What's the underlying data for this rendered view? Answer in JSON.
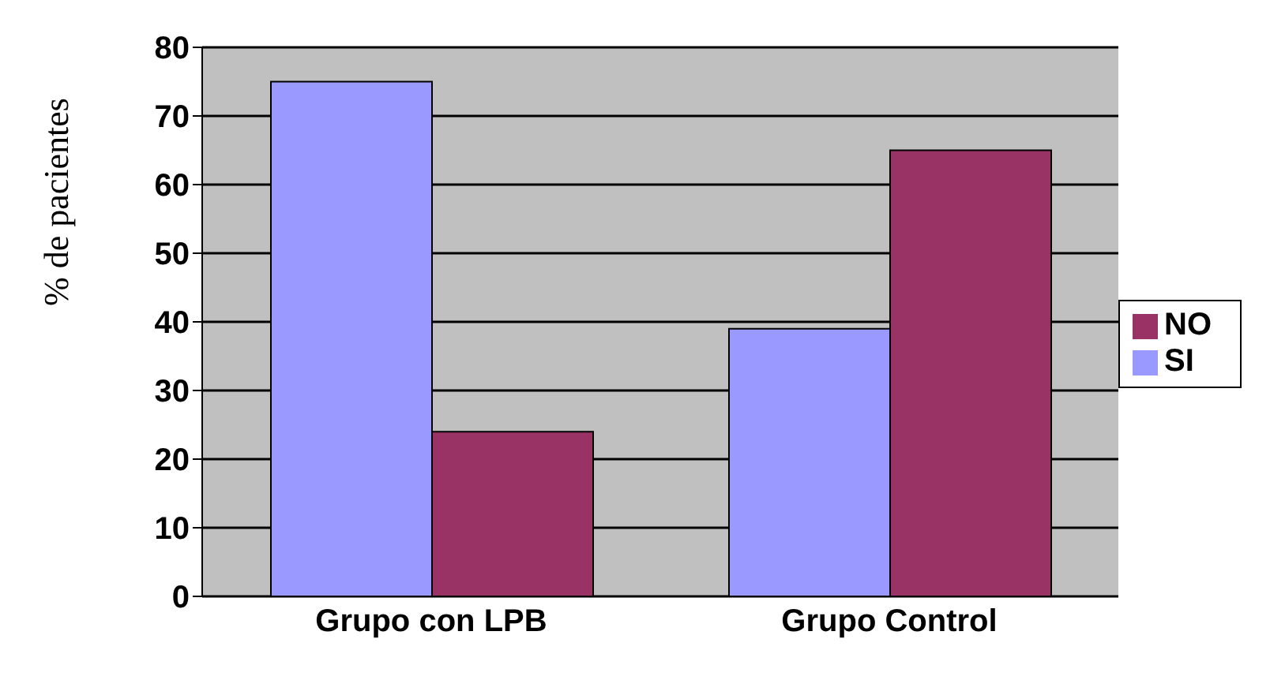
{
  "chart_data": {
    "type": "bar",
    "ylabel": "% de pacientes",
    "categories": [
      "Grupo con LPB",
      "Grupo Control"
    ],
    "series": [
      {
        "name": "SI",
        "color": "#9999ff",
        "values": [
          75,
          39
        ]
      },
      {
        "name": "NO",
        "color": "#993366",
        "values": [
          24,
          65
        ]
      }
    ],
    "ylim": [
      0,
      80
    ],
    "yticks": [
      0,
      10,
      20,
      30,
      40,
      50,
      60,
      70,
      80
    ],
    "grid": "y",
    "legend": "right"
  }
}
